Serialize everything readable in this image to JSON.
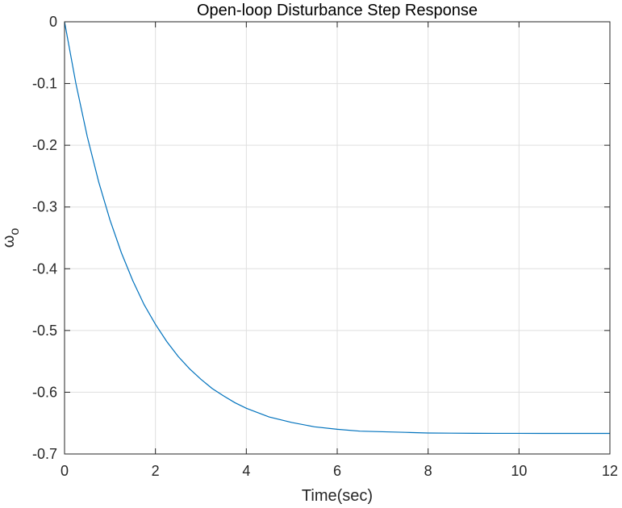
{
  "chart_data": {
    "type": "line",
    "title": "Open-loop Disturbance Step Response",
    "xlabel": "Time(sec)",
    "ylabel": "ω",
    "ylabel_subscript": "o",
    "xlim": [
      0,
      12
    ],
    "ylim": [
      -0.7,
      0
    ],
    "xticks": [
      0,
      2,
      4,
      6,
      8,
      10,
      12
    ],
    "xtick_labels": [
      "0",
      "2",
      "4",
      "6",
      "8",
      "10",
      "12"
    ],
    "yticks": [
      0,
      -0.1,
      -0.2,
      -0.3,
      -0.4,
      -0.5,
      -0.6,
      -0.7
    ],
    "ytick_labels": [
      "0",
      "-0.1",
      "-0.2",
      "-0.3",
      "-0.4",
      "-0.5",
      "-0.6",
      "-0.7"
    ],
    "grid": true,
    "series": [
      {
        "name": "response",
        "color": "#0072BD",
        "x": [
          0,
          0.25,
          0.5,
          0.75,
          1,
          1.25,
          1.5,
          1.75,
          2,
          2.25,
          2.5,
          2.75,
          3,
          3.25,
          3.5,
          3.75,
          4,
          4.5,
          5,
          5.5,
          6,
          6.5,
          7,
          7.5,
          8,
          8.5,
          9,
          9.5,
          10,
          10.5,
          11,
          11.5,
          12
        ],
        "y": [
          0,
          -0.1,
          -0.186,
          -0.259,
          -0.321,
          -0.374,
          -0.419,
          -0.458,
          -0.49,
          -0.518,
          -0.542,
          -0.562,
          -0.579,
          -0.594,
          -0.606,
          -0.617,
          -0.626,
          -0.64,
          -0.649,
          -0.656,
          -0.66,
          -0.663,
          -0.664,
          -0.665,
          -0.666,
          -0.6663,
          -0.6665,
          -0.6666,
          -0.6666,
          -0.6667,
          -0.6667,
          -0.6667,
          -0.6667
        ]
      }
    ]
  }
}
